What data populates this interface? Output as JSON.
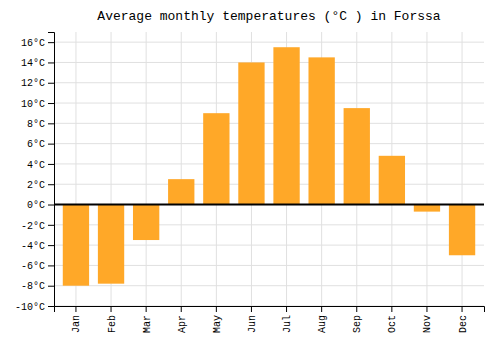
{
  "chart_data": {
    "type": "bar",
    "title": "Average monthly temperatures (°C ) in Forssa",
    "categories": [
      "Jan",
      "Feb",
      "Mar",
      "Apr",
      "May",
      "Jun",
      "Jul",
      "Aug",
      "Sep",
      "Oct",
      "Nov",
      "Dec"
    ],
    "values": [
      -8.0,
      -7.8,
      -3.5,
      2.5,
      9.0,
      14.0,
      15.5,
      14.5,
      9.5,
      4.8,
      -0.7,
      -5.0
    ],
    "color": "#FFA828",
    "ylim": [
      -10,
      17
    ],
    "yticks": [
      {
        "value": -10,
        "label": "-10°C"
      },
      {
        "value": -8,
        "label": "-8°C"
      },
      {
        "value": -6,
        "label": "-6°C"
      },
      {
        "value": -4,
        "label": "-4°C"
      },
      {
        "value": -2,
        "label": "-2°C"
      },
      {
        "value": 0,
        "label": "0°C"
      },
      {
        "value": 2,
        "label": "2°C"
      },
      {
        "value": 4,
        "label": "4°C"
      },
      {
        "value": 6,
        "label": "6°C"
      },
      {
        "value": 8,
        "label": "8°C"
      },
      {
        "value": 10,
        "label": "10°C"
      },
      {
        "value": 12,
        "label": "12°C"
      },
      {
        "value": 14,
        "label": "14°C"
      },
      {
        "value": 16,
        "label": "16°C"
      }
    ],
    "grid": true
  }
}
